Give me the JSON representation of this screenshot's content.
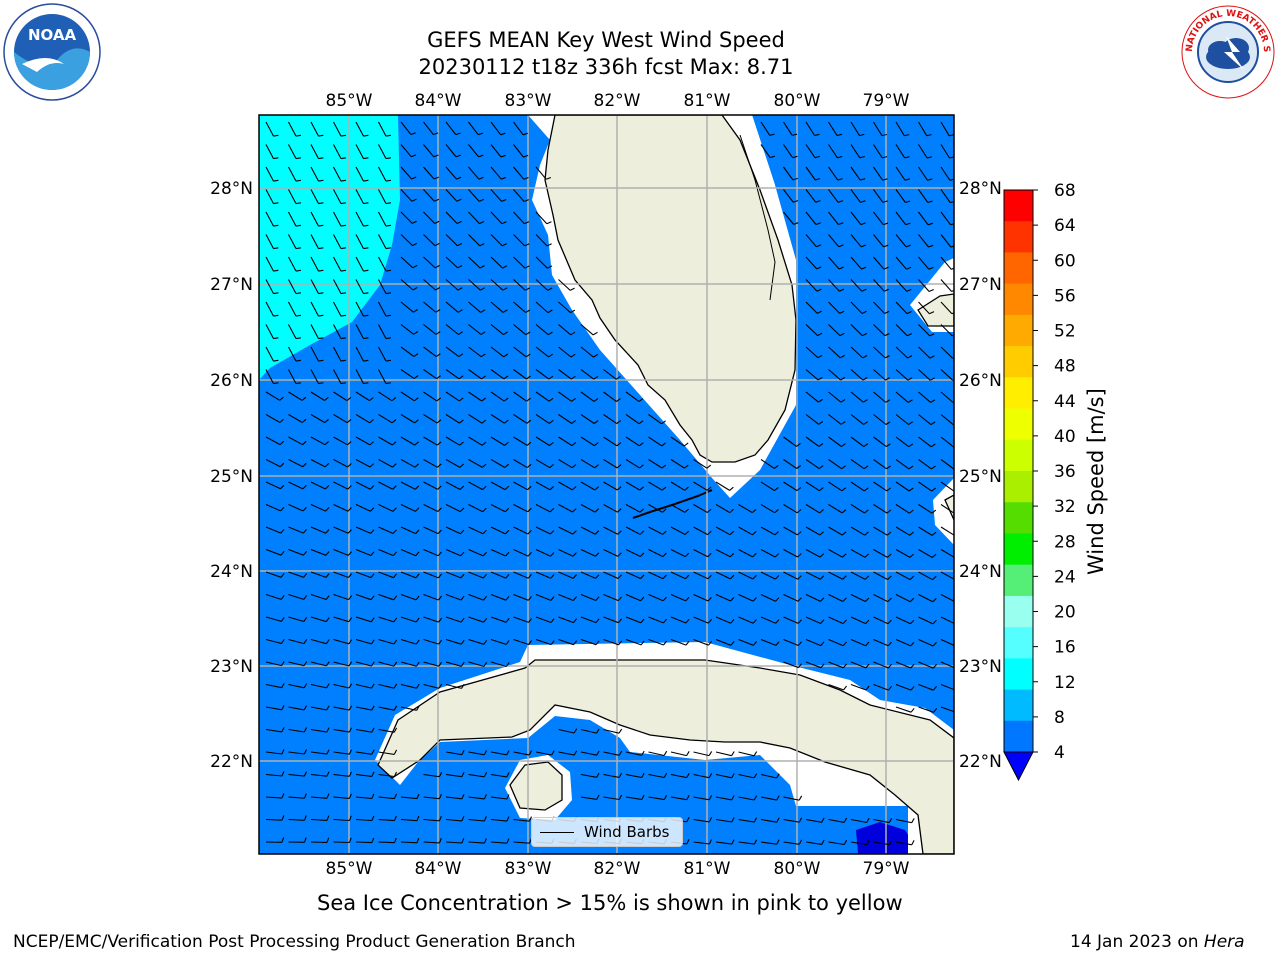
{
  "title_line1": "GEFS MEAN Key West Wind Speed",
  "title_line2": "20230112 t18z 336h fcst   Max: 8.71",
  "lon_labels": [
    "85°W",
    "84°W",
    "83°W",
    "82°W",
    "81°W",
    "80°W",
    "79°W"
  ],
  "lat_labels": [
    "28°N",
    "27°N",
    "26°N",
    "25°N",
    "24°N",
    "23°N",
    "22°N"
  ],
  "colorbar": {
    "label": "Wind Speed [m/s]",
    "ticks": [
      "68",
      "64",
      "60",
      "56",
      "52",
      "48",
      "44",
      "40",
      "36",
      "32",
      "28",
      "24",
      "20",
      "16",
      "12",
      "8",
      "4"
    ],
    "colors": [
      "#ff0000",
      "#ff3300",
      "#ff6600",
      "#ff8800",
      "#ffaa00",
      "#ffcc00",
      "#ffee00",
      "#eeff00",
      "#ccff00",
      "#aaee00",
      "#55dd00",
      "#00ee00",
      "#55ee77",
      "#99ffee",
      "#55ffff",
      "#00ffff",
      "#00bbff",
      "#0077ff"
    ],
    "under_color": "#0000ff"
  },
  "legend_label": "Wind Barbs",
  "caption": "Sea Ice Concentration > 15% is shown in pink to yellow",
  "footer_left": "NCEP/EMC/Verification Post Processing Product Generation Branch",
  "footer_right_date": "14 Jan 2023 on ",
  "footer_right_host": "Hera",
  "logos": {
    "noaa_text": "NOAA",
    "noaa_ring": "NATIONAL OCEANIC AND ATMOSPHERIC ADMINISTRATION · U.S. DEPARTMENT OF COMMERCE",
    "nws_ring": "NATIONAL WEATHER SERVICE"
  },
  "colors": {
    "ocean": "#0080ff",
    "wind_high": "#00ffff",
    "land": "#eeeedd",
    "grid": "#b0b0b0",
    "deep_blue": "#0000dd"
  }
}
